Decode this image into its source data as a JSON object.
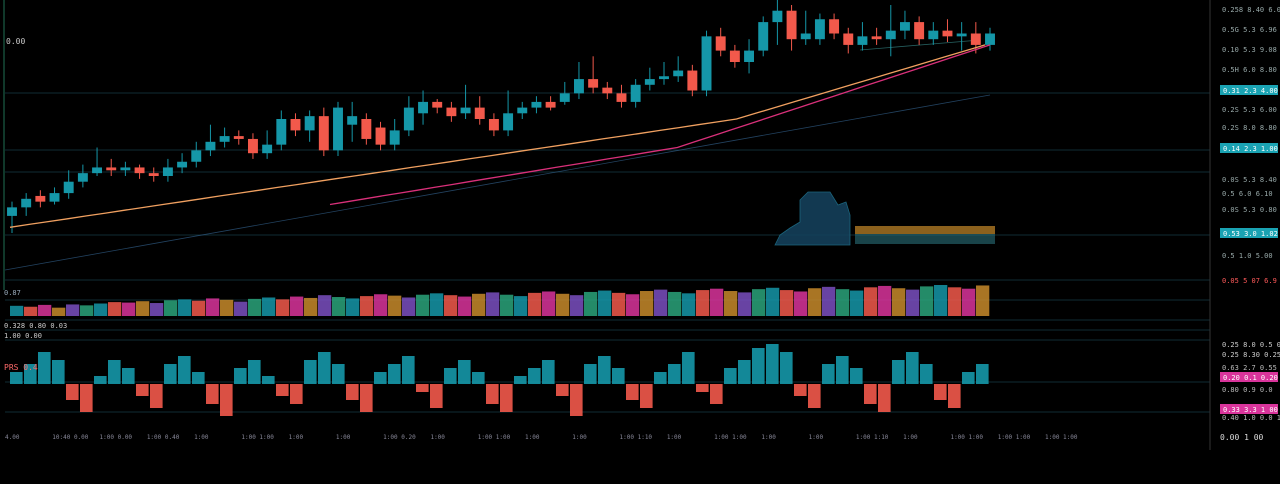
{
  "header": {
    "top_left_readout": "",
    "value_label": "0.00"
  },
  "price_axis": {
    "ticks": [
      "0.258 8.40 6.05",
      "0.5G 5.3 6.96",
      "0.10 5.3 9.08",
      "0.5H 6.0 8.80",
      "0.2S 5.3 6.00",
      "0.2S 8.0 8.80",
      "0.0S 5.3 8.40",
      "0.5 6.0 6.10",
      "0.0S 5.3 0.80",
      "0.5 1.0 5.00"
    ],
    "highlight_labels": [
      {
        "text": "0.31 2.3 4.00",
        "color": "#1aa3b3"
      },
      {
        "text": "0.14 2.3 1.00",
        "color": "#1aa3b3"
      },
      {
        "text": "0.53 3.0 1.02",
        "color": "#1aa3b3"
      }
    ]
  },
  "volume_panel": {
    "label": "0.87",
    "right_label": "0.05 5 07 6.9 5.3",
    "right_label_color": "#ff5a5a"
  },
  "mid_labels": [
    "0.328 0.80 0.03",
    "1.00 0.00",
    "0.25 8.0 0.5 0.80",
    "0.25 8.30 0.25"
  ],
  "oscillator": {
    "label": "PRS 0.4",
    "right_labels": [
      "0.63 2.7 0.55",
      "0.80 0.9 0.0",
      "0.40 1.0 0.0 1"
    ],
    "highlight_labels": [
      {
        "text": "0.20 0.1 0.20",
        "color": "#d9349b"
      },
      {
        "text": "0.33 3.3 1 00",
        "color": "#d9349b"
      }
    ]
  },
  "time_axis": {
    "ticks": [
      "4.00",
      "10:40 0.00",
      "1:00 0.00",
      "1:00 0.40",
      "1:00",
      "1:00 1:00",
      "1:00",
      "1:00",
      "1:00 0.20",
      "1:00",
      "1:00 1:00",
      "1:00",
      "1:00",
      "1:00 1:10",
      "1:00",
      "1:00 1:00",
      "1:00",
      "1:00",
      "1:00 1:10",
      "1:00",
      "1:00 1:00",
      "1:00 1:00",
      "1:00 1:00"
    ],
    "right_label": "0.00 1 00"
  },
  "colors": {
    "up": "#1597a8",
    "down": "#f2594b",
    "ma_fast": "#f0a060",
    "ma_slow": "#d9307a",
    "ma_trend": "#3a6fa0",
    "grid": "#1e4a5a",
    "accent": "#18b6c6",
    "magenta": "#d9349b"
  },
  "chart_data": {
    "type": "candlestick",
    "title": "",
    "xlabel": "",
    "ylabel": "",
    "ylim": [
      0,
      100
    ],
    "candles": [
      [
        26,
        29,
        20,
        31
      ],
      [
        29,
        32,
        26,
        34
      ],
      [
        33,
        31,
        29,
        35
      ],
      [
        31,
        34,
        30,
        36
      ],
      [
        34,
        38,
        32,
        42
      ],
      [
        38,
        41,
        36,
        44
      ],
      [
        41,
        43,
        40,
        50
      ],
      [
        43,
        42,
        40,
        46
      ],
      [
        42,
        43,
        40,
        45
      ],
      [
        43,
        41,
        39,
        44
      ],
      [
        41,
        40,
        38,
        43
      ],
      [
        40,
        43,
        38,
        46
      ],
      [
        43,
        45,
        41,
        48
      ],
      [
        45,
        49,
        43,
        52
      ],
      [
        49,
        52,
        47,
        58
      ],
      [
        52,
        54,
        50,
        57
      ],
      [
        54,
        53,
        51,
        56
      ],
      [
        53,
        48,
        46,
        55
      ],
      [
        48,
        51,
        46,
        56
      ],
      [
        51,
        60,
        49,
        63
      ],
      [
        60,
        56,
        54,
        62
      ],
      [
        56,
        61,
        52,
        63
      ],
      [
        61,
        49,
        47,
        64
      ],
      [
        49,
        64,
        47,
        66
      ],
      [
        58,
        61,
        52,
        66
      ],
      [
        60,
        53,
        51,
        62
      ],
      [
        57,
        51,
        49,
        59
      ],
      [
        51,
        56,
        49,
        60
      ],
      [
        56,
        64,
        54,
        68
      ],
      [
        62,
        66,
        58,
        70
      ],
      [
        66,
        64,
        62,
        67
      ],
      [
        64,
        61,
        59,
        66
      ],
      [
        62,
        64,
        60,
        72
      ],
      [
        64,
        60,
        58,
        68
      ],
      [
        60,
        56,
        54,
        62
      ],
      [
        56,
        62,
        54,
        70
      ],
      [
        62,
        64,
        60,
        66
      ],
      [
        64,
        66,
        62,
        68
      ],
      [
        66,
        64,
        63,
        68
      ],
      [
        66,
        69,
        65,
        73
      ],
      [
        69,
        74,
        67,
        80
      ],
      [
        74,
        71,
        69,
        82
      ],
      [
        71,
        69,
        67,
        73
      ],
      [
        69,
        66,
        64,
        72
      ],
      [
        66,
        72,
        64,
        74
      ],
      [
        72,
        74,
        70,
        78
      ],
      [
        74,
        75,
        72,
        80
      ],
      [
        75,
        77,
        73,
        82
      ],
      [
        77,
        70,
        68,
        79
      ],
      [
        70,
        89,
        68,
        91
      ],
      [
        89,
        84,
        82,
        92
      ],
      [
        84,
        80,
        78,
        86
      ],
      [
        80,
        84,
        76,
        88
      ],
      [
        84,
        94,
        82,
        96
      ],
      [
        94,
        98,
        86,
        104
      ],
      [
        98,
        88,
        84,
        100
      ],
      [
        88,
        90,
        86,
        98
      ],
      [
        88,
        95,
        86,
        97
      ],
      [
        95,
        90,
        88,
        97
      ],
      [
        90,
        86,
        83,
        92
      ],
      [
        86,
        89,
        84,
        94
      ],
      [
        89,
        88,
        86,
        92
      ],
      [
        88,
        91,
        82,
        100
      ],
      [
        91,
        94,
        88,
        98
      ],
      [
        94,
        88,
        86,
        96
      ],
      [
        88,
        91,
        86,
        94
      ],
      [
        91,
        89,
        87,
        95
      ],
      [
        89,
        90,
        84,
        94
      ],
      [
        90,
        86,
        83,
        94
      ],
      [
        86,
        90,
        84,
        92
      ]
    ],
    "ma_fast": [
      22,
      23,
      24,
      25,
      26,
      27,
      28,
      29,
      30,
      31,
      32,
      33,
      34,
      35,
      36,
      37,
      38,
      39,
      40,
      41,
      42,
      43,
      44,
      45,
      46,
      47,
      48,
      49,
      50,
      51,
      52,
      53,
      54,
      55,
      56,
      57,
      58,
      59,
      60,
      62,
      64,
      66,
      68,
      70,
      72,
      74,
      76,
      78,
      80,
      82,
      84,
      86
    ],
    "ma_slow": [
      30,
      31,
      32,
      33,
      34,
      35,
      36,
      37,
      38,
      39,
      40,
      41,
      42,
      43,
      44,
      45,
      46,
      47,
      48,
      49,
      50,
      52,
      54,
      56,
      58,
      60,
      62,
      64,
      66,
      68,
      70,
      72,
      74,
      76,
      78,
      80,
      82,
      84,
      86
    ],
    "volume": [
      22,
      20,
      24,
      18,
      25,
      23,
      27,
      30,
      29,
      32,
      28,
      34,
      36,
      33,
      38,
      35,
      31,
      37,
      40,
      36,
      42,
      39,
      45,
      41,
      38,
      43,
      47,
      44,
      40,
      46,
      49,
      45,
      42,
      48,
      51,
      46,
      43,
      50,
      53,
      48,
      45,
      52,
      55,
      50,
      47,
      54,
      57,
      52,
      49,
      56,
      59,
      54,
      51,
      58,
      61,
      56,
      53,
      60,
      63,
      58,
      55,
      62,
      65,
      60,
      57,
      64,
      67,
      62,
      59,
      66
    ],
    "oscillator": [
      3,
      5,
      8,
      6,
      -4,
      -7,
      2,
      6,
      4,
      -3,
      -6,
      5,
      7,
      3,
      -5,
      -8,
      4,
      6,
      2,
      -3,
      -5,
      6,
      8,
      5,
      -4,
      -7,
      3,
      5,
      7,
      -2,
      -6,
      4,
      6,
      3,
      -5,
      -7,
      2,
      4,
      6,
      -3,
      -8,
      5,
      7,
      4,
      -4,
      -6,
      3,
      5,
      8,
      -2,
      -5,
      4,
      6,
      9,
      10,
      8,
      -3,
      -6,
      5,
      7,
      4,
      -5,
      -7,
      6,
      8,
      5,
      -4,
      -6,
      3,
      5
    ]
  }
}
